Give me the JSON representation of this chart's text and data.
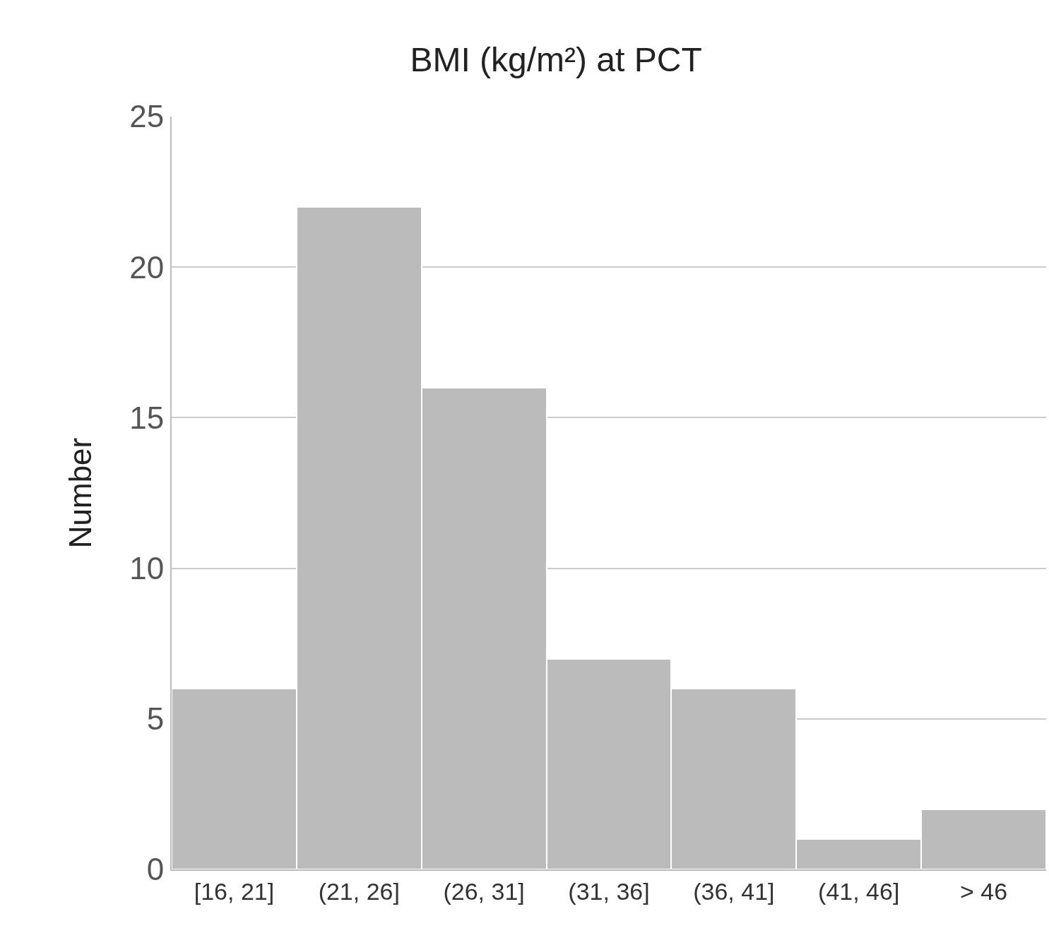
{
  "chart_data": {
    "type": "bar",
    "title": "BMI (kg/m²) at PCT",
    "ylabel": "Number",
    "categories": [
      "[16, 21]",
      "(21, 26]",
      "(26, 31]",
      "(31, 36]",
      "(36, 41]",
      "(41, 46]",
      "> 46"
    ],
    "values": [
      6,
      22,
      16,
      7,
      6,
      1,
      2
    ],
    "color": "#bbbbbb",
    "ylim": [
      0,
      25
    ],
    "yticks": [
      0,
      5,
      10,
      15,
      20,
      25
    ],
    "grid": "y"
  }
}
